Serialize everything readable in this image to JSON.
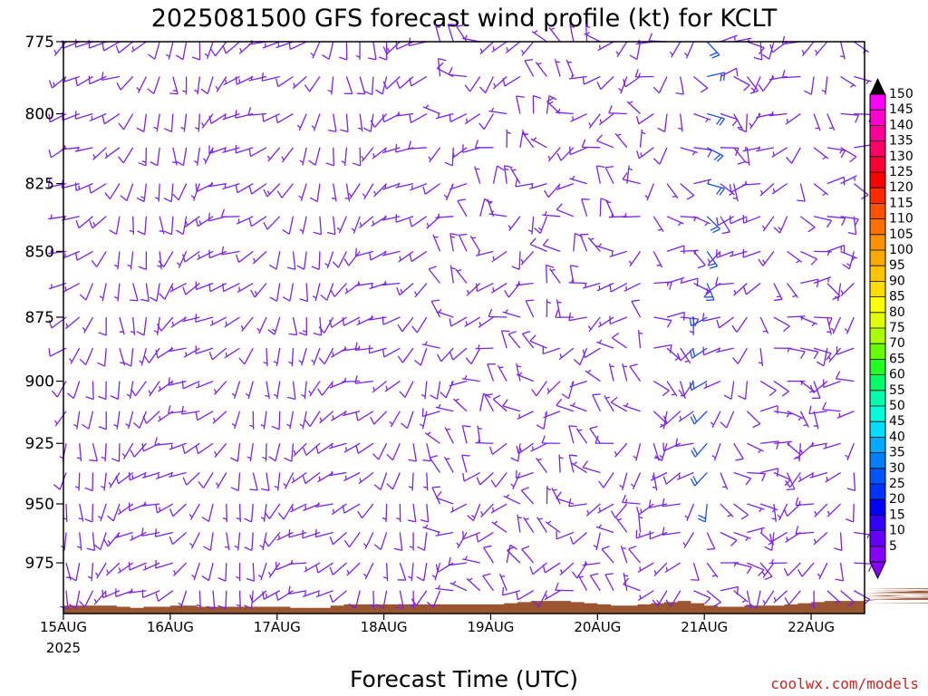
{
  "chart_data": {
    "type": "wind-barbs",
    "title": "2025081500 GFS forecast wind profile (kt) for KCLT",
    "xlabel": "Forecast Time (UTC)",
    "x_ticks": [
      "15AUG",
      "16AUG",
      "17AUG",
      "18AUG",
      "19AUG",
      "20AUG",
      "21AUG",
      "22AUG"
    ],
    "x_year_label": "2025",
    "x_range_days": [
      0,
      7.5
    ],
    "time_step_hours": 3,
    "y_ticks": [
      "775",
      "800",
      "825",
      "850",
      "875",
      "900",
      "925",
      "950",
      "975"
    ],
    "y_range_hpa": [
      775,
      997
    ],
    "y_inverted": true,
    "barb_levels_hpa": [
      775,
      787,
      800,
      812,
      825,
      837,
      850,
      862,
      875,
      887,
      900,
      912,
      925,
      937,
      950,
      962,
      975,
      987
    ],
    "colorbar": {
      "ticks": [
        "150",
        "145",
        "140",
        "135",
        "130",
        "125",
        "120",
        "115",
        "110",
        "105",
        "100",
        "95",
        "90",
        "85",
        "80",
        "75",
        "70",
        "65",
        "60",
        "55",
        "50",
        "45",
        "40",
        "35",
        "30",
        "25",
        "20",
        "15",
        "10",
        "5"
      ],
      "colors": [
        "#ff00ff",
        "#ff00d0",
        "#ff0099",
        "#ff0066",
        "#ff0033",
        "#ff0000",
        "#ff2a00",
        "#ff5000",
        "#ff7000",
        "#ff9000",
        "#ffa800",
        "#ffc400",
        "#ffdd00",
        "#ffff00",
        "#e0ff00",
        "#aaff00",
        "#66ff00",
        "#22ff22",
        "#00ff66",
        "#00ffaa",
        "#00ffdd",
        "#00ddff",
        "#00aaff",
        "#0080ff",
        "#0055ff",
        "#0033ff",
        "#0000ff",
        "#3300ff",
        "#6600ff",
        "#8800ff"
      ]
    },
    "terrain_color": "#9b5530",
    "terrain_pressure_hpa": [
      993.5,
      993.5,
      993.5,
      993.5,
      994,
      994.5,
      994,
      994,
      993.5,
      993.5,
      994,
      994,
      994,
      994,
      994,
      994,
      994,
      994.5,
      994.5,
      994.5,
      993.5,
      993,
      993,
      993,
      993,
      993,
      993,
      993,
      993,
      993,
      993,
      993,
      993,
      992.5,
      992,
      991.5,
      991.5,
      991.5,
      992,
      992.5,
      993,
      993.5,
      993.5,
      993,
      992.5,
      992,
      991.5,
      992.5,
      993.5,
      994,
      994,
      993.5,
      993.5,
      993.5,
      993,
      992.5,
      992,
      991.5,
      991.5,
      991.5,
      991.5,
      991,
      991,
      990.5,
      990.5,
      990.5,
      990.5,
      990.5,
      990,
      989.5,
      988,
      986,
      987,
      987.5,
      987.5,
      987.5,
      987.5,
      987,
      988,
      988.5,
      988.5,
      988.5,
      988.5,
      988.5,
      989,
      992.5,
      991,
      991
    ],
    "wind_speed_range_kt": [
      5,
      25
    ]
  },
  "credit": "coolwx.com/models"
}
